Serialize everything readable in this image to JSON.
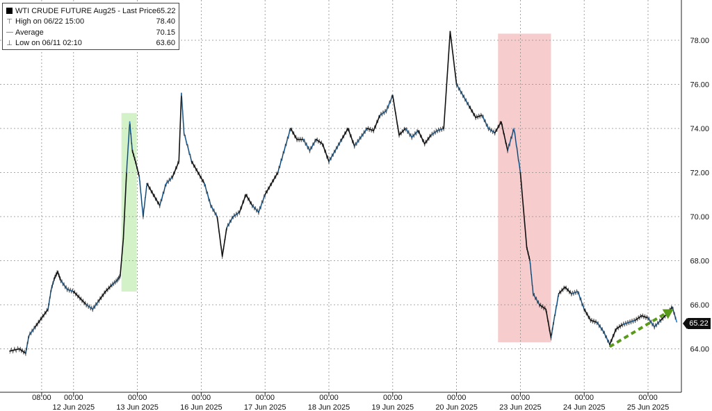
{
  "legend": {
    "title": "WTI CRUDE FUTURE Aug25 - Last Price",
    "last_price": "65.22",
    "high_label": "High on 06/22 15:00",
    "high_value": "78.40",
    "average_label": "Average",
    "average_value": "70.15",
    "low_label": "Low on 06/11 02:10",
    "low_value": "63.60",
    "icons": {
      "series": "black-square-icon",
      "high": "high-marker-icon",
      "average": "average-marker-icon",
      "low": "low-marker-icon"
    }
  },
  "last_price_tag": "65.22",
  "colors": {
    "line_dark": "#111111",
    "line_blue": "#2b7fc4",
    "green_box": "#d4f2c8",
    "red_box": "#f6cccc",
    "arrow": "#5a9a1a",
    "grid": "#8a8a8a"
  },
  "chart_data": {
    "type": "line",
    "title": "WTI CRUDE FUTURE Aug25 - Last Price",
    "ylim": [
      62.2,
      79.2
    ],
    "yticks": [
      "64.00",
      "66.00",
      "68.00",
      "70.00",
      "72.00",
      "74.00",
      "76.00",
      "78.00"
    ],
    "ytick_values": [
      64,
      66,
      68,
      70,
      72,
      74,
      76,
      78
    ],
    "axis_side": "right",
    "grid": true,
    "xticks_top": [
      "08:00",
      "00:00",
      "00:00",
      "00:00",
      "00:00",
      "00:00",
      "00:00",
      "00:00",
      "00:00",
      "00:00",
      "00:00"
    ],
    "xticks_bottom": [
      "",
      "12 Jun 2025",
      "13 Jun 2025",
      "16 Jun 2025",
      "17 Jun 2025",
      "18 Jun 2025",
      "19 Jun 2025",
      "20 Jun 2025",
      "23 Jun 2025",
      "24 Jun 2025",
      "25 Jun 2025"
    ],
    "x_range": [
      0,
      110
    ],
    "xtick_positions": [
      5,
      10,
      20,
      30,
      40,
      50,
      60,
      70,
      80,
      90,
      100
    ],
    "series": [
      {
        "x": [
          0,
          1.5,
          2.5,
          3,
          4,
          5,
          6,
          6.5,
          7,
          7.5,
          8,
          9,
          10,
          11,
          12,
          13,
          14,
          15,
          16,
          16.8,
          17.3,
          17.8,
          18.3,
          18.8,
          19.2,
          19.7,
          20.3,
          20.9,
          21.5,
          22.5,
          23.5,
          24.5,
          25.5,
          26.5,
          26.9,
          27.3,
          28.5,
          29.5,
          30.5,
          31.5,
          32.5,
          33.3,
          34,
          35,
          36,
          37,
          38,
          39,
          40,
          41,
          42,
          43,
          44,
          45,
          46,
          47,
          48,
          49,
          50,
          51,
          52,
          53,
          54,
          55,
          56,
          57,
          58,
          59,
          60,
          61,
          62,
          63,
          64,
          65,
          66,
          67,
          68,
          69,
          70,
          71,
          72,
          73,
          74,
          75,
          76,
          77,
          78,
          79,
          80,
          81,
          81.5,
          82,
          83,
          84,
          84.8,
          85.2,
          86,
          87,
          88,
          89,
          90,
          91,
          92,
          93,
          94,
          95,
          96,
          97,
          98,
          99,
          100,
          101,
          102,
          103,
          103.8,
          104.5
        ],
        "y": [
          63.9,
          64.0,
          63.8,
          64.6,
          65.0,
          65.4,
          65.8,
          66.7,
          67.2,
          67.5,
          67.1,
          66.7,
          66.6,
          66.3,
          66.0,
          65.8,
          66.2,
          66.6,
          66.9,
          67.1,
          67.3,
          69.0,
          72.0,
          74.3,
          73.0,
          72.5,
          71.8,
          70.0,
          71.5,
          71.0,
          70.5,
          71.5,
          71.8,
          72.5,
          75.6,
          73.8,
          72.5,
          72.0,
          71.5,
          70.5,
          70.0,
          68.2,
          69.5,
          70.0,
          70.2,
          71.0,
          70.5,
          70.2,
          71.0,
          71.5,
          72.0,
          73.0,
          74.0,
          73.5,
          73.5,
          73.0,
          73.5,
          73.3,
          72.5,
          73.0,
          73.5,
          74.0,
          73.2,
          73.6,
          74.0,
          73.9,
          74.6,
          74.8,
          75.5,
          73.7,
          74.0,
          73.6,
          73.9,
          73.3,
          73.7,
          73.9,
          74.0,
          78.4,
          76.0,
          75.5,
          75.0,
          74.5,
          74.6,
          74.0,
          73.8,
          74.3,
          73.0,
          74.0,
          72.0,
          68.6,
          68.0,
          66.5,
          66.0,
          65.8,
          64.5,
          65.2,
          66.5,
          66.8,
          66.5,
          66.6,
          65.8,
          65.3,
          65.2,
          64.8,
          64.2,
          64.9,
          65.1,
          65.2,
          65.3,
          65.5,
          65.4,
          65.0,
          65.3,
          65.6,
          65.9,
          65.22
        ]
      }
    ],
    "annotations": [
      {
        "type": "highlight",
        "color": "green",
        "x_from": 17.5,
        "x_to": 19.9,
        "y_from": 66.6,
        "y_to": 74.7
      },
      {
        "type": "highlight",
        "color": "red",
        "x_from": 76.5,
        "x_to": 84.8,
        "y_from": 64.3,
        "y_to": 78.3
      },
      {
        "type": "arrow",
        "style": "dashed",
        "color": "green",
        "x_from": 94.0,
        "x_to": 104.0,
        "y_from": 64.1,
        "y_to": 65.8
      }
    ]
  }
}
